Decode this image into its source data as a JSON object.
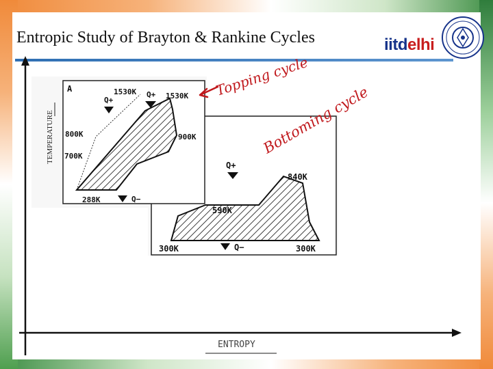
{
  "title": "Entropic Study of Brayton & Rankine Cycles",
  "logo": {
    "part1": "iitd",
    "part2": "elhi"
  },
  "axes": {
    "y_label": "TEMPERATURE",
    "x_label": "ENTROPY"
  },
  "diagram_a": {
    "panel_label": "A",
    "labels": [
      "1530K",
      "1530K",
      "800K",
      "700K",
      "900K",
      "288K"
    ],
    "heat_in": "Q+",
    "heat_in_2": "Q+",
    "heat_out": "Q−"
  },
  "diagram_b": {
    "labels": [
      "840K",
      "590K",
      "300K",
      "300K"
    ],
    "heat_in": "Q+",
    "heat_out": "Q−"
  },
  "annotations": {
    "topping": "Topping cycle",
    "bottoming": "Bottoming cycle"
  },
  "colors": {
    "annotation": "#c0181c",
    "title_rule": "#2f6fb3",
    "logo_blue": "#16338a",
    "logo_red": "#c81e1e"
  }
}
